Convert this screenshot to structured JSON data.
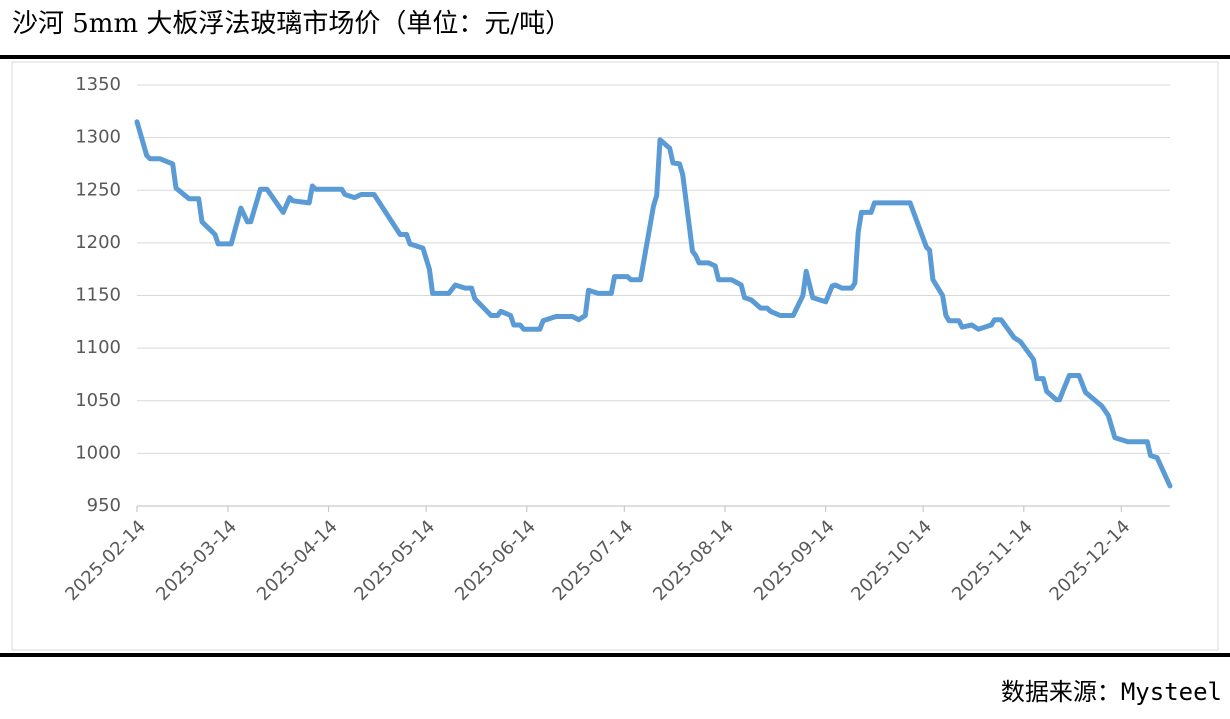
{
  "chart_data": {
    "type": "line",
    "title": "沙河 5mm 大板浮法玻璃市场价（单位：元/吨）",
    "source": "数据来源：Mysteel",
    "x": [
      "2025-02-14",
      "2025-02-17",
      "2025-02-18",
      "2025-02-21",
      "2025-02-25",
      "2025-02-26",
      "2025-02-28",
      "2025-03-02",
      "2025-03-05",
      "2025-03-06",
      "2025-03-10",
      "2025-03-11",
      "2025-03-15",
      "2025-03-18",
      "2025-03-20",
      "2025-03-21",
      "2025-03-24",
      "2025-03-26",
      "2025-03-31",
      "2025-04-02",
      "2025-04-03",
      "2025-04-08",
      "2025-04-09",
      "2025-04-10",
      "2025-04-18",
      "2025-04-19",
      "2025-04-22",
      "2025-04-24",
      "2025-04-28",
      "2025-05-06",
      "2025-05-08",
      "2025-05-09",
      "2025-05-13",
      "2025-05-15",
      "2025-05-16",
      "2025-05-21",
      "2025-05-23",
      "2025-05-26",
      "2025-05-28",
      "2025-05-29",
      "2025-06-03",
      "2025-06-05",
      "2025-06-06",
      "2025-06-09",
      "2025-06-10",
      "2025-06-12",
      "2025-06-13",
      "2025-06-18",
      "2025-06-19",
      "2025-06-23",
      "2025-06-28",
      "2025-06-30",
      "2025-07-02",
      "2025-07-03",
      "2025-07-06",
      "2025-07-10",
      "2025-07-11",
      "2025-07-15",
      "2025-07-16",
      "2025-07-19",
      "2025-07-21",
      "2025-07-23",
      "2025-07-24",
      "2025-07-25",
      "2025-07-28",
      "2025-07-29",
      "2025-07-31",
      "2025-08-01",
      "2025-08-04",
      "2025-08-05",
      "2025-08-06",
      "2025-08-09",
      "2025-08-11",
      "2025-08-12",
      "2025-08-16",
      "2025-08-19",
      "2025-08-20",
      "2025-08-22",
      "2025-08-25",
      "2025-08-27",
      "2025-08-28",
      "2025-08-31",
      "2025-09-04",
      "2025-09-07",
      "2025-09-08",
      "2025-09-10",
      "2025-09-12",
      "2025-09-14",
      "2025-09-16",
      "2025-09-17",
      "2025-09-19",
      "2025-09-22",
      "2025-09-23",
      "2025-09-24",
      "2025-09-25",
      "2025-09-28",
      "2025-09-29",
      "2025-10-10",
      "2025-10-15",
      "2025-10-16",
      "2025-10-17",
      "2025-10-20",
      "2025-10-21",
      "2025-10-22",
      "2025-10-25",
      "2025-10-26",
      "2025-10-29",
      "2025-10-31",
      "2025-11-04",
      "2025-11-05",
      "2025-11-07",
      "2025-11-11",
      "2025-11-13",
      "2025-11-17",
      "2025-11-18",
      "2025-11-20",
      "2025-11-21",
      "2025-11-24",
      "2025-11-25",
      "2025-11-26",
      "2025-11-28",
      "2025-12-01",
      "2025-12-03",
      "2025-12-08",
      "2025-12-10",
      "2025-12-12",
      "2025-12-16",
      "2025-12-22",
      "2025-12-23",
      "2025-12-25",
      "2025-12-29"
    ],
    "series": [
      {
        "color": "#5b9bd5",
        "values": [
          1315,
          1283,
          1280,
          1280,
          1275,
          1252,
          1247,
          1242,
          1242,
          1220,
          1208,
          1199,
          1199,
          1233,
          1220,
          1220,
          1251,
          1251,
          1229,
          1243,
          1240,
          1238,
          1254,
          1251,
          1251,
          1246,
          1243,
          1246,
          1246,
          1208,
          1208,
          1199,
          1195,
          1175,
          1152,
          1152,
          1160,
          1157,
          1157,
          1147,
          1131,
          1131,
          1135,
          1131,
          1122,
          1122,
          1118,
          1118,
          1126,
          1130,
          1130,
          1127,
          1131,
          1155,
          1152,
          1152,
          1168,
          1168,
          1165,
          1165,
          1200,
          1235,
          1245,
          1298,
          1290,
          1276,
          1275,
          1265,
          1192,
          1188,
          1181,
          1181,
          1178,
          1165,
          1165,
          1160,
          1148,
          1146,
          1138,
          1138,
          1135,
          1131,
          1131,
          1150,
          1173,
          1148,
          1146,
          1144,
          1159,
          1160,
          1157,
          1157,
          1162,
          1210,
          1229,
          1229,
          1238,
          1238,
          1196,
          1193,
          1165,
          1150,
          1131,
          1126,
          1126,
          1120,
          1122,
          1118,
          1122,
          1127,
          1127,
          1110,
          1106,
          1089,
          1071,
          1071,
          1059,
          1051,
          1051,
          1059,
          1074,
          1074,
          1058,
          1045,
          1036,
          1015,
          1011,
          1011,
          998,
          996,
          969
        ]
      }
    ],
    "xlim": [
      "2025-02-14",
      "2025-12-29"
    ],
    "xticks": [
      "2025-02-14",
      "2025-03-14",
      "2025-04-14",
      "2025-05-14",
      "2025-06-14",
      "2025-07-14",
      "2025-08-14",
      "2025-09-14",
      "2025-10-14",
      "2025-11-14",
      "2025-12-14"
    ],
    "ylim": [
      950,
      1350
    ],
    "yticks": [
      950,
      1000,
      1050,
      1100,
      1150,
      1200,
      1250,
      1300,
      1350
    ],
    "grid": true
  }
}
